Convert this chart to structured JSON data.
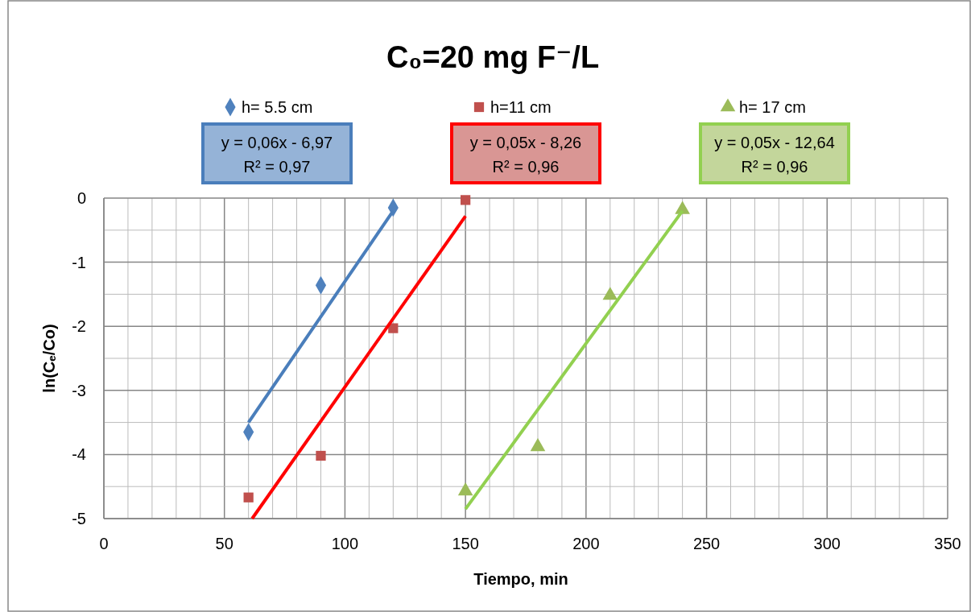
{
  "chart_data": {
    "type": "scatter",
    "title": "C₀=20 mg F⁻/L",
    "xlabel": "Tiempo, min",
    "ylabel": "ln(Cₑ/Co)",
    "xlim": [
      0,
      350
    ],
    "ylim": [
      -5,
      0
    ],
    "xticks": [
      0,
      {
        "value": 10,
        "label": null
      },
      {
        "value": 20,
        "label": null
      },
      {
        "value": 30,
        "label": null
      },
      {
        "value": 40,
        "label": null
      },
      50,
      {
        "value": 60,
        "label": null
      },
      {
        "value": 70,
        "label": null
      },
      {
        "value": 80,
        "label": null
      },
      {
        "value": 90,
        "label": null
      },
      100,
      {
        "value": 110,
        "label": null
      },
      {
        "value": 120,
        "label": null
      },
      {
        "value": 130,
        "label": null
      },
      {
        "value": 140,
        "label": null
      },
      150,
      {
        "value": 160,
        "label": null
      },
      {
        "value": 170,
        "label": null
      },
      {
        "value": 180,
        "label": null
      },
      {
        "value": 190,
        "label": null
      },
      200,
      {
        "value": 210,
        "label": null
      },
      {
        "value": 220,
        "label": null
      },
      {
        "value": 230,
        "label": null
      },
      {
        "value": 240,
        "label": null
      },
      250,
      {
        "value": 260,
        "label": null
      },
      {
        "value": 270,
        "label": null
      },
      {
        "value": 280,
        "label": null
      },
      {
        "value": 290,
        "label": null
      },
      300,
      {
        "value": 310,
        "label": null
      },
      {
        "value": 320,
        "label": null
      },
      {
        "value": 330,
        "label": null
      },
      {
        "value": 340,
        "label": null
      },
      350
    ],
    "yticks": [
      -5,
      {
        "value": -4.5,
        "label": null
      },
      -4,
      {
        "value": -3.5,
        "label": null
      },
      -3,
      {
        "value": -2.5,
        "label": null
      },
      -2,
      {
        "value": -1.5,
        "label": null
      },
      -1,
      {
        "value": -0.5,
        "label": null
      },
      0
    ],
    "grid": true,
    "legend": "top",
    "series": [
      {
        "name": "h= 5.5 cm",
        "color": "#4f81bd",
        "marker": "diamond",
        "x": [
          60,
          90,
          120
        ],
        "values": [
          -3.65,
          -1.36,
          -0.15
        ]
      },
      {
        "name": "h=11 cm",
        "color": "#c0504d",
        "marker": "square",
        "x": [
          60,
          90,
          120,
          150
        ],
        "values": [
          -4.67,
          -4.02,
          -2.03,
          -0.03
        ]
      },
      {
        "name": "h= 17 cm",
        "color": "#9bbb59",
        "marker": "triangle",
        "x": [
          150,
          180,
          210,
          240
        ],
        "values": [
          -4.57,
          -3.88,
          -1.52,
          -0.18
        ]
      },
      {
        "type": "line",
        "color": "#4a7ebb",
        "marker": "none",
        "x": [
          60,
          120
        ],
        "values": [
          -3.5,
          -0.2
        ]
      },
      {
        "type": "line",
        "color": "#ff0000",
        "marker": "none",
        "x": [
          61.5,
          150
        ],
        "values": [
          -5,
          -0.28
        ]
      },
      {
        "type": "line",
        "color": "#92d050",
        "marker": "none",
        "x": [
          150,
          240
        ],
        "values": [
          -4.85,
          -0.2
        ]
      }
    ],
    "annotations": [
      "y = 0,06x - 6,97",
      "R² = 0,97",
      "y = 0,05x - 8,26",
      "R² = 0,96",
      "y = 0,05x - 12,64",
      "R² = 0,96"
    ]
  }
}
